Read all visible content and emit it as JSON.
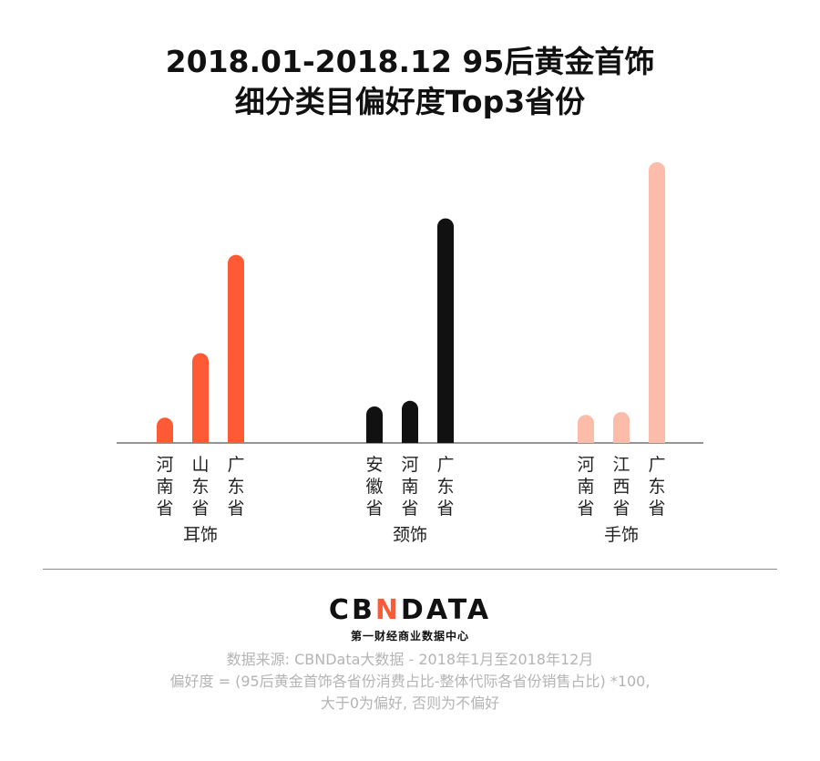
{
  "title": {
    "line1": "2018.01-2018.12 95后黄金首饰",
    "line2": "细分类目偏好度Top3省份"
  },
  "chart_data": {
    "type": "bar",
    "groups": [
      {
        "name": "耳饰",
        "color": "#ff5a36",
        "bars": [
          {
            "label": "河南省",
            "value": 9
          },
          {
            "label": "山东省",
            "value": 32
          },
          {
            "label": "广东省",
            "value": 67
          }
        ]
      },
      {
        "name": "颈饰",
        "color": "#111111",
        "bars": [
          {
            "label": "安徽省",
            "value": 13
          },
          {
            "label": "河南省",
            "value": 15
          },
          {
            "label": "广东省",
            "value": 80
          }
        ]
      },
      {
        "name": "手饰",
        "color": "#fbbcaa",
        "bars": [
          {
            "label": "河南省",
            "value": 10
          },
          {
            "label": "江西省",
            "value": 11
          },
          {
            "label": "广东省",
            "value": 100
          }
        ]
      }
    ],
    "ylim": [
      0,
      100
    ],
    "grid": false,
    "legend": "none"
  },
  "footer": {
    "logo_prefix": "CB",
    "logo_accent": "N",
    "logo_suffix": "DATA",
    "tagline": "第一财经商业数据中心",
    "source": "数据来源: CBNData大数据 - 2018年1月至2018年12月",
    "formula": "偏好度 = (95后黄金首饰各省份消费占比-整体代际各省份销售占比) *100,",
    "note": "大于0为偏好, 否则为不偏好"
  }
}
